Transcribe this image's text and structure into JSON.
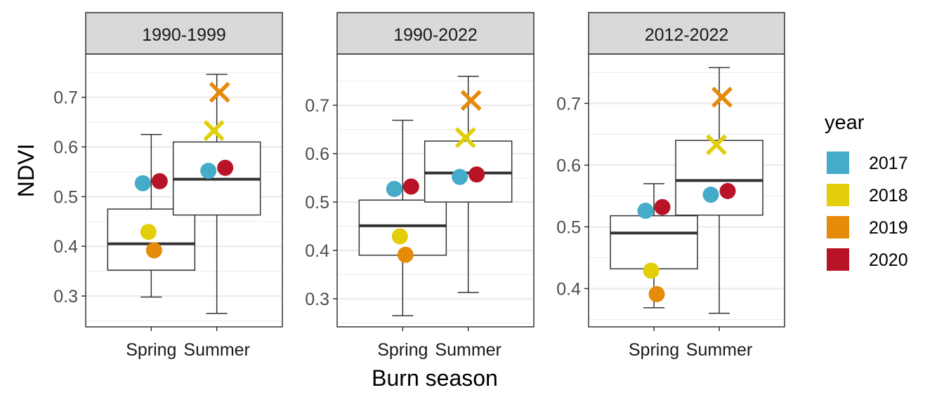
{
  "chart_data": {
    "type": "boxplot",
    "xlabel": "Burn season",
    "ylabel": "NDVI",
    "legend_title": "year",
    "legend_placement": "right",
    "categories": [
      "Spring",
      "Summer"
    ],
    "years": [
      {
        "label": "2017",
        "color": "#44ABC8"
      },
      {
        "label": "2018",
        "color": "#E2CF0A"
      },
      {
        "label": "2019",
        "color": "#E68A0A"
      },
      {
        "label": "2020",
        "color": "#B81326"
      }
    ],
    "panels": [
      {
        "title": "1990-1999",
        "ylim": [
          0.238,
          0.787
        ],
        "yticks": [
          0.3,
          0.4,
          0.5,
          0.6,
          0.7
        ],
        "tick_labels": [
          "0.3",
          "0.4",
          "0.5",
          "0.6",
          "0.7"
        ],
        "boxes": [
          {
            "category": "Spring",
            "min": 0.298,
            "q1": 0.352,
            "median": 0.405,
            "q3": 0.475,
            "max": 0.625
          },
          {
            "category": "Summer",
            "min": 0.265,
            "q1": 0.463,
            "median": 0.535,
            "q3": 0.61,
            "max": 0.746
          }
        ],
        "points": [
          {
            "category": "Spring",
            "year": "2017",
            "value": 0.527,
            "shape": "circle"
          },
          {
            "category": "Spring",
            "year": "2020",
            "value": 0.531,
            "shape": "circle"
          },
          {
            "category": "Spring",
            "year": "2018",
            "value": 0.429,
            "shape": "circle"
          },
          {
            "category": "Spring",
            "year": "2019",
            "value": 0.392,
            "shape": "circle"
          },
          {
            "category": "Summer",
            "year": "2017",
            "value": 0.552,
            "shape": "circle"
          },
          {
            "category": "Summer",
            "year": "2020",
            "value": 0.558,
            "shape": "circle"
          },
          {
            "category": "Summer",
            "year": "2018",
            "value": 0.633,
            "shape": "cross"
          },
          {
            "category": "Summer",
            "year": "2019",
            "value": 0.71,
            "shape": "cross"
          }
        ]
      },
      {
        "title": "1990-2022",
        "ylim": [
          0.242,
          0.806
        ],
        "yticks": [
          0.3,
          0.4,
          0.5,
          0.6,
          0.7
        ],
        "tick_labels": [
          "0.3",
          "0.4",
          "0.5",
          "0.6",
          "0.7"
        ],
        "boxes": [
          {
            "category": "Spring",
            "min": 0.265,
            "q1": 0.39,
            "median": 0.451,
            "q3": 0.504,
            "max": 0.669
          },
          {
            "category": "Summer",
            "min": 0.313,
            "q1": 0.5,
            "median": 0.56,
            "q3": 0.626,
            "max": 0.76
          }
        ],
        "points": [
          {
            "category": "Spring",
            "year": "2017",
            "value": 0.527,
            "shape": "circle"
          },
          {
            "category": "Spring",
            "year": "2020",
            "value": 0.532,
            "shape": "circle"
          },
          {
            "category": "Spring",
            "year": "2018",
            "value": 0.429,
            "shape": "circle"
          },
          {
            "category": "Spring",
            "year": "2019",
            "value": 0.391,
            "shape": "circle"
          },
          {
            "category": "Summer",
            "year": "2017",
            "value": 0.552,
            "shape": "circle"
          },
          {
            "category": "Summer",
            "year": "2020",
            "value": 0.557,
            "shape": "circle"
          },
          {
            "category": "Summer",
            "year": "2018",
            "value": 0.633,
            "shape": "cross"
          },
          {
            "category": "Summer",
            "year": "2019",
            "value": 0.71,
            "shape": "cross"
          }
        ]
      },
      {
        "title": "2012-2022",
        "ylim": [
          0.338,
          0.78
        ],
        "yticks": [
          0.4,
          0.5,
          0.6,
          0.7
        ],
        "tick_labels": [
          "0.4",
          "0.5",
          "0.6",
          "0.7"
        ],
        "boxes": [
          {
            "category": "Spring",
            "min": 0.369,
            "q1": 0.432,
            "median": 0.49,
            "q3": 0.518,
            "max": 0.57
          },
          {
            "category": "Summer",
            "min": 0.36,
            "q1": 0.519,
            "median": 0.575,
            "q3": 0.64,
            "max": 0.758
          }
        ],
        "points": [
          {
            "category": "Spring",
            "year": "2017",
            "value": 0.526,
            "shape": "circle"
          },
          {
            "category": "Spring",
            "year": "2020",
            "value": 0.532,
            "shape": "circle"
          },
          {
            "category": "Spring",
            "year": "2018",
            "value": 0.429,
            "shape": "circle"
          },
          {
            "category": "Spring",
            "year": "2019",
            "value": 0.391,
            "shape": "circle"
          },
          {
            "category": "Summer",
            "year": "2017",
            "value": 0.552,
            "shape": "circle"
          },
          {
            "category": "Summer",
            "year": "2020",
            "value": 0.558,
            "shape": "circle"
          },
          {
            "category": "Summer",
            "year": "2018",
            "value": 0.633,
            "shape": "cross"
          },
          {
            "category": "Summer",
            "year": "2019",
            "value": 0.71,
            "shape": "cross"
          }
        ]
      }
    ]
  }
}
